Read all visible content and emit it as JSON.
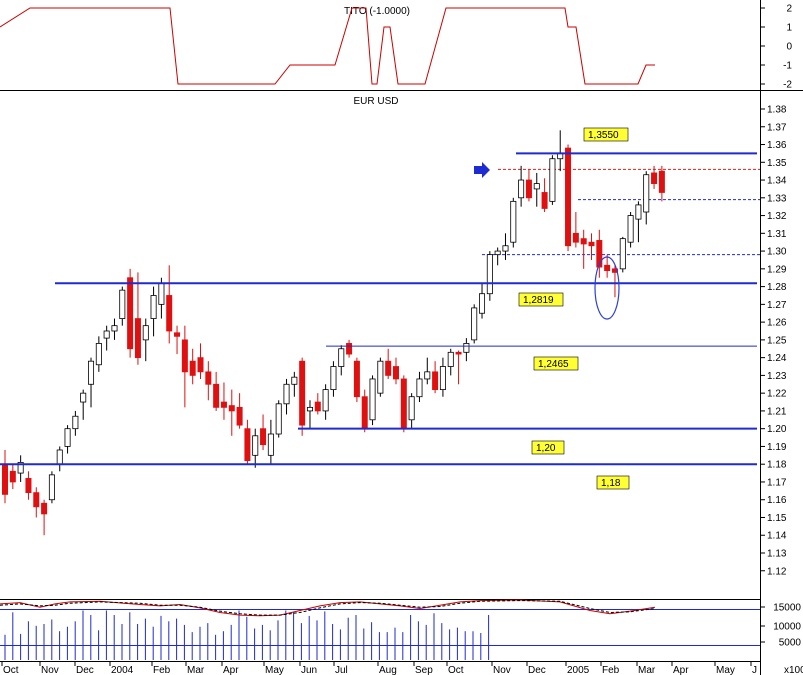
{
  "chart_data": [
    {
      "type": "line",
      "title": "TITO (-1.0000)",
      "ylim": [
        -2,
        2
      ],
      "y_ticks": [
        "2",
        "1",
        "0",
        "-1",
        "-2"
      ],
      "series": [
        {
          "color": "#cc0000",
          "points": [
            [
              0,
              1
            ],
            [
              30,
              2
            ],
            [
              170,
              2
            ],
            [
              178,
              -2
            ],
            [
              275,
              -2
            ],
            [
              290,
              -1
            ],
            [
              335,
              -1
            ],
            [
              352,
              2
            ],
            [
              366,
              2
            ],
            [
              372,
              -2
            ],
            [
              377,
              -2
            ],
            [
              384,
              1
            ],
            [
              390,
              1
            ],
            [
              398,
              -2
            ],
            [
              425,
              -2
            ],
            [
              446,
              2
            ],
            [
              565,
              2
            ],
            [
              568,
              1
            ],
            [
              576,
              1
            ],
            [
              585,
              -2
            ],
            [
              638,
              -2
            ],
            [
              646,
              -1
            ],
            [
              655,
              -1
            ]
          ]
        }
      ]
    },
    {
      "type": "candlestick",
      "title": "EUR USD",
      "ylim": [
        1.125,
        1.385
      ],
      "y_ticks": [
        "1.38",
        "1.37",
        "1.36",
        "1.35",
        "1.34",
        "1.33",
        "1.32",
        "1.31",
        "1.30",
        "1.29",
        "1.28",
        "1.27",
        "1.26",
        "1.25",
        "1.24",
        "1.23",
        "1.22",
        "1.21",
        "1.20",
        "1.19",
        "1.18",
        "1.17",
        "1.16",
        "1.15",
        "1.14",
        "1.13",
        "1.12"
      ],
      "x_ticks": [
        "Oct",
        "Nov",
        "Dec",
        "2004",
        "Feb",
        "Mar",
        "Apr",
        "May",
        "Jun",
        "Jul",
        "Aug",
        "Sep",
        "Oct",
        "Nov",
        "Dec",
        "2005",
        "Feb",
        "Mar",
        "Apr",
        "May",
        "J"
      ],
      "candles": [
        [
          1.18,
          1.188,
          1.158,
          1.163
        ],
        [
          1.176,
          1.18,
          1.166,
          1.17
        ],
        [
          1.175,
          1.185,
          1.17,
          1.181
        ],
        [
          1.172,
          1.176,
          1.16,
          1.164
        ],
        [
          1.164,
          1.167,
          1.15,
          1.156
        ],
        [
          1.158,
          1.16,
          1.14,
          1.152
        ],
        [
          1.16,
          1.176,
          1.158,
          1.174
        ],
        [
          1.18,
          1.19,
          1.176,
          1.188
        ],
        [
          1.19,
          1.202,
          1.186,
          1.2
        ],
        [
          1.2,
          1.21,
          1.196,
          1.207
        ],
        [
          1.215,
          1.222,
          1.205,
          1.22
        ],
        [
          1.225,
          1.24,
          1.212,
          1.238
        ],
        [
          1.236,
          1.252,
          1.232,
          1.248
        ],
        [
          1.251,
          1.258,
          1.244,
          1.255
        ],
        [
          1.255,
          1.262,
          1.25,
          1.258
        ],
        [
          1.262,
          1.28,
          1.258,
          1.278
        ],
        [
          1.285,
          1.29,
          1.24,
          1.245
        ],
        [
          1.262,
          1.288,
          1.236,
          1.24
        ],
        [
          1.25,
          1.262,
          1.238,
          1.258
        ],
        [
          1.262,
          1.28,
          1.252,
          1.275
        ],
        [
          1.27,
          1.285,
          1.262,
          1.282
        ],
        [
          1.275,
          1.292,
          1.248,
          1.255
        ],
        [
          1.254,
          1.258,
          1.242,
          1.252
        ],
        [
          1.25,
          1.258,
          1.212,
          1.232
        ],
        [
          1.238,
          1.245,
          1.225,
          1.23
        ],
        [
          1.24,
          1.248,
          1.228,
          1.232
        ],
        [
          1.232,
          1.238,
          1.216,
          1.225
        ],
        [
          1.225,
          1.232,
          1.21,
          1.212
        ],
        [
          1.215,
          1.226,
          1.205,
          1.212
        ],
        [
          1.213,
          1.222,
          1.196,
          1.21
        ],
        [
          1.212,
          1.22,
          1.2,
          1.202
        ],
        [
          1.2,
          1.205,
          1.18,
          1.182
        ],
        [
          1.185,
          1.2,
          1.178,
          1.196
        ],
        [
          1.2,
          1.208,
          1.188,
          1.191
        ],
        [
          1.185,
          1.205,
          1.18,
          1.197
        ],
        [
          1.197,
          1.216,
          1.195,
          1.214
        ],
        [
          1.214,
          1.228,
          1.208,
          1.225
        ],
        [
          1.225,
          1.232,
          1.218,
          1.229
        ],
        [
          1.238,
          1.24,
          1.196,
          1.202
        ],
        [
          1.21,
          1.216,
          1.2,
          1.212
        ],
        [
          1.215,
          1.22,
          1.208,
          1.21
        ],
        [
          1.21,
          1.225,
          1.205,
          1.222
        ],
        [
          1.222,
          1.238,
          1.218,
          1.235
        ],
        [
          1.235,
          1.247,
          1.23,
          1.245
        ],
        [
          1.248,
          1.25,
          1.24,
          1.242
        ],
        [
          1.238,
          1.24,
          1.215,
          1.218
        ],
        [
          1.218,
          1.222,
          1.198,
          1.2
        ],
        [
          1.205,
          1.23,
          1.202,
          1.228
        ],
        [
          1.22,
          1.24,
          1.218,
          1.238
        ],
        [
          1.238,
          1.245,
          1.228,
          1.23
        ],
        [
          1.235,
          1.24,
          1.225,
          1.228
        ],
        [
          1.228,
          1.23,
          1.198,
          1.2
        ],
        [
          1.205,
          1.22,
          1.2,
          1.218
        ],
        [
          1.218,
          1.232,
          1.215,
          1.228
        ],
        [
          1.228,
          1.24,
          1.225,
          1.232
        ],
        [
          1.232,
          1.238,
          1.22,
          1.222
        ],
        [
          1.222,
          1.24,
          1.218,
          1.235
        ],
        [
          1.235,
          1.245,
          1.23,
          1.243
        ],
        [
          1.243,
          1.244,
          1.225,
          1.242
        ],
        [
          1.243,
          1.251,
          1.238,
          1.248
        ],
        [
          1.25,
          1.27,
          1.248,
          1.268
        ],
        [
          1.265,
          1.282,
          1.262,
          1.276
        ],
        [
          1.276,
          1.3,
          1.272,
          1.298
        ],
        [
          1.298,
          1.302,
          1.292,
          1.3
        ],
        [
          1.3,
          1.31,
          1.295,
          1.303
        ],
        [
          1.305,
          1.33,
          1.302,
          1.328
        ],
        [
          1.33,
          1.348,
          1.325,
          1.34
        ],
        [
          1.34,
          1.346,
          1.328,
          1.33
        ],
        [
          1.335,
          1.344,
          1.325,
          1.338
        ],
        [
          1.333,
          1.341,
          1.322,
          1.324
        ],
        [
          1.328,
          1.354,
          1.326,
          1.352
        ],
        [
          1.352,
          1.368,
          1.345,
          1.355
        ],
        [
          1.358,
          1.36,
          1.3,
          1.303
        ],
        [
          1.31,
          1.322,
          1.302,
          1.305
        ],
        [
          1.307,
          1.312,
          1.29,
          1.304
        ],
        [
          1.305,
          1.31,
          1.295,
          1.303
        ],
        [
          1.306,
          1.312,
          1.285,
          1.291
        ],
        [
          1.292,
          1.298,
          1.285,
          1.289
        ],
        [
          1.29,
          1.292,
          1.274,
          1.288
        ],
        [
          1.29,
          1.308,
          1.288,
          1.307
        ],
        [
          1.305,
          1.322,
          1.302,
          1.32
        ],
        [
          1.318,
          1.328,
          1.305,
          1.326
        ],
        [
          1.322,
          1.345,
          1.315,
          1.343
        ],
        [
          1.344,
          1.348,
          1.335,
          1.338
        ],
        [
          1.345,
          1.348,
          1.328,
          1.333
        ]
      ],
      "hlines": [
        {
          "value": 1.355,
          "label": "1,3550"
        },
        {
          "value": 1.2819,
          "label": "1,2819"
        },
        {
          "value": 1.2465,
          "label": "1,2465"
        },
        {
          "value": 1.2,
          "label": "1,20"
        },
        {
          "value": 1.18,
          "label": "1,18"
        }
      ],
      "dotted_levels": [
        1.346,
        1.329,
        1.298
      ],
      "arrow_color": "#1e2bd0",
      "marker_color": "#2a3fd8"
    },
    {
      "type": "line",
      "y_ticks": [
        "15000",
        "10000",
        "5000"
      ],
      "x_label": "x100",
      "series": [
        {
          "color": "#cc0000",
          "points": [
            [
              0,
              85
            ],
            [
              20,
              87
            ],
            [
              40,
              80
            ],
            [
              55,
              85
            ],
            [
              70,
              88
            ],
            [
              100,
              89
            ],
            [
              140,
              84
            ],
            [
              160,
              82
            ],
            [
              180,
              84
            ],
            [
              200,
              79
            ],
            [
              220,
              72
            ],
            [
              240,
              68
            ],
            [
              260,
              67
            ],
            [
              280,
              68
            ],
            [
              300,
              75
            ],
            [
              320,
              82
            ],
            [
              340,
              87
            ],
            [
              360,
              88
            ],
            [
              380,
              85
            ],
            [
              400,
              82
            ],
            [
              420,
              78
            ],
            [
              440,
              83
            ],
            [
              460,
              88
            ],
            [
              480,
              90
            ],
            [
              520,
              91
            ],
            [
              560,
              88
            ],
            [
              590,
              75
            ],
            [
              610,
              70
            ],
            [
              630,
              74
            ],
            [
              655,
              80
            ]
          ]
        },
        {
          "color": "#000000",
          "dashed": true,
          "points": [
            [
              0,
              83
            ],
            [
              20,
              85
            ],
            [
              40,
              82
            ],
            [
              55,
              83
            ],
            [
              70,
              86
            ],
            [
              100,
              88
            ],
            [
              140,
              86
            ],
            [
              160,
              83
            ],
            [
              180,
              83
            ],
            [
              200,
              80
            ],
            [
              220,
              74
            ],
            [
              240,
              70
            ],
            [
              260,
              68
            ],
            [
              280,
              68
            ],
            [
              300,
              72
            ],
            [
              320,
              79
            ],
            [
              340,
              85
            ],
            [
              360,
              87
            ],
            [
              380,
              86
            ],
            [
              400,
              83
            ],
            [
              420,
              80
            ],
            [
              440,
              81
            ],
            [
              460,
              86
            ],
            [
              480,
              89
            ],
            [
              520,
              90
            ],
            [
              560,
              89
            ],
            [
              590,
              78
            ],
            [
              610,
              72
            ],
            [
              630,
              73
            ],
            [
              655,
              78
            ]
          ]
        }
      ],
      "volume_bar_count": 84
    }
  ]
}
